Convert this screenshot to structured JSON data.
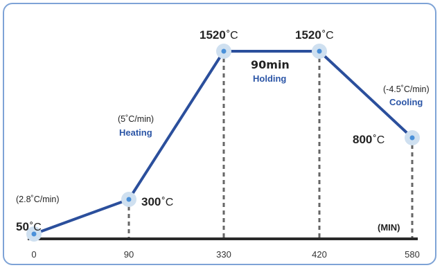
{
  "chart_data": {
    "type": "line",
    "x_unit_label": "(MIN)",
    "x_ticks": [
      "0",
      "90",
      "330",
      "420",
      "580"
    ],
    "xlim": [
      0,
      580
    ],
    "ylim": [
      0,
      1600
    ],
    "points": [
      {
        "x": 0,
        "y": 50,
        "temp_value": "50",
        "temp_unit": "˚C"
      },
      {
        "x": 90,
        "y": 300,
        "temp_value": "300",
        "temp_unit": "˚C"
      },
      {
        "x": 330,
        "y": 1520,
        "temp_value": "1520",
        "temp_unit": "˚C"
      },
      {
        "x": 420,
        "y": 1520,
        "temp_value": "1520",
        "temp_unit": "˚C"
      },
      {
        "x": 580,
        "y": 800,
        "temp_value": "800",
        "temp_unit": "˚C"
      }
    ],
    "segments": [
      {
        "rate": "(2.8˚C/min)",
        "phase": ""
      },
      {
        "rate": "(5˚C/min)",
        "phase": "Heating"
      },
      {
        "duration": "90min",
        "phase": "Holding"
      },
      {
        "rate": "(-4.5˚C/min)",
        "phase": "Cooling"
      }
    ],
    "colors": {
      "line": "#2b4f9c",
      "marker_outer": "#cfe0f0",
      "marker_inner": "#4a90d9",
      "axis": "#2a2a2a",
      "guide": "#666666",
      "frame": "#7ea3d6",
      "phase_text": "#2b55a6"
    }
  }
}
